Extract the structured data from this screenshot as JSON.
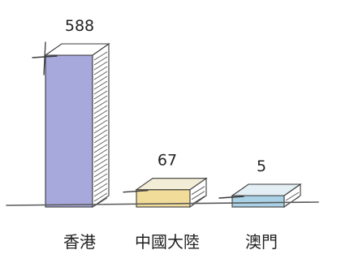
{
  "chart_data": {
    "type": "bar",
    "categories": [
      "香港",
      "中國大陸",
      "澳門"
    ],
    "values": [
      588,
      67,
      5
    ],
    "value_labels": [
      "588",
      "67",
      "5"
    ],
    "title": "",
    "xlabel": "",
    "ylabel": "",
    "ylim": [
      0,
      588
    ],
    "grid": false,
    "legend": "none",
    "colors": {
      "fronts": [
        "#a7a8dc",
        "#f2dc9a",
        "#a9d2e6"
      ],
      "sides": [
        "#b8b8c4",
        "#c8c8c8",
        "#c8c8c8"
      ],
      "tops": [
        "#ffffff",
        "#f3ecd6",
        "#e3eef5"
      ],
      "ink": "#3a3a3a",
      "baseline": "#5a5a5a"
    }
  }
}
